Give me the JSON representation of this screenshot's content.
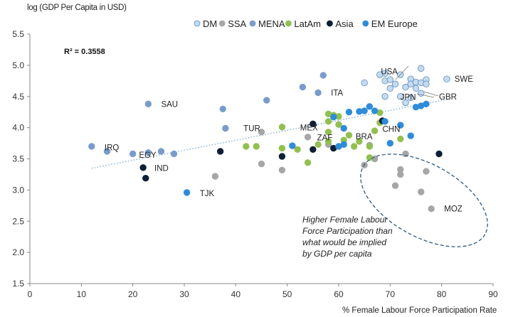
{
  "chart_data": {
    "type": "scatter",
    "ylabel": "log (GDP Per Capita in USD)",
    "xlabel": "% Female Labour Force Participation Rate",
    "xlim": [
      0,
      90
    ],
    "ylim": [
      1.5,
      5.5
    ],
    "xticks": [
      "0",
      "10",
      "20",
      "30",
      "40",
      "50",
      "60",
      "70",
      "80",
      "90"
    ],
    "yticks": [
      "1.5",
      "2.0",
      "2.5",
      "3.0",
      "3.5",
      "4.0",
      "4.5",
      "5.0",
      "5.5"
    ],
    "r_squared": "R² = 0.3558",
    "trendline": {
      "x_start": 12,
      "y_start": 3.35,
      "x_end": 82,
      "y_end": 4.47,
      "color": "#8fb9da"
    },
    "annotation": {
      "lines": [
        "Higher Female Labour",
        "Force Participation than",
        "what would be implied",
        "by GDP per capita"
      ],
      "ellipse_color": "#2e5a87"
    },
    "series": [
      {
        "name": "DM",
        "color": "#c5dbed",
        "stroke": "#5b8bbd",
        "points": [
          [
            65,
            4.72
          ],
          [
            68,
            4.85
          ],
          [
            69,
            4.87
          ],
          [
            69,
            4.75
          ],
          [
            70,
            4.63
          ],
          [
            70,
            4.77
          ],
          [
            71,
            4.7
          ],
          [
            72,
            4.85
          ],
          [
            73,
            4.65
          ],
          [
            74,
            4.78
          ],
          [
            74,
            4.7
          ],
          [
            75,
            4.73
          ],
          [
            75,
            4.63
          ],
          [
            76,
            4.72
          ],
          [
            76,
            4.95
          ],
          [
            77,
            4.77
          ],
          [
            77,
            4.7
          ],
          [
            72,
            4.5
          ],
          [
            73,
            4.4
          ],
          [
            74,
            4.48
          ],
          [
            76,
            4.55
          ],
          [
            81,
            4.78
          ],
          [
            69,
            4.5
          ]
        ]
      },
      {
        "name": "SSA",
        "color": "#a6a6a6",
        "stroke": "#a6a6a6",
        "points": [
          [
            36,
            3.22
          ],
          [
            45,
            3.42
          ],
          [
            49,
            3.32
          ],
          [
            54,
            3.85
          ],
          [
            58,
            3.73
          ],
          [
            65,
            3.4
          ],
          [
            66,
            3.72
          ],
          [
            71,
            3.07
          ],
          [
            72,
            3.25
          ],
          [
            72,
            3.33
          ],
          [
            73,
            3.58
          ],
          [
            76,
            2.97
          ],
          [
            77,
            3.3
          ],
          [
            78,
            2.7
          ],
          [
            45,
            3.93
          ],
          [
            67,
            3.5
          ]
        ]
      },
      {
        "name": "MENA",
        "color": "#7a9ccc",
        "stroke": "#7a9ccc",
        "points": [
          [
            12,
            3.7
          ],
          [
            15,
            3.62
          ],
          [
            20,
            3.58
          ],
          [
            23,
            3.6
          ],
          [
            25.5,
            3.62
          ],
          [
            28,
            3.58
          ],
          [
            23,
            4.38
          ],
          [
            37.5,
            4.3
          ],
          [
            38,
            3.99
          ],
          [
            46,
            4.44
          ],
          [
            53,
            4.65
          ],
          [
            57,
            4.84
          ],
          [
            56,
            4.56
          ]
        ]
      },
      {
        "name": "LatAm",
        "color": "#92c050",
        "stroke": "#92c050",
        "points": [
          [
            42,
            3.7
          ],
          [
            44,
            3.7
          ],
          [
            49,
            4.01
          ],
          [
            49,
            3.67
          ],
          [
            52,
            3.65
          ],
          [
            54,
            3.44
          ],
          [
            56,
            3.73
          ],
          [
            58,
            3.78
          ],
          [
            58,
            3.93
          ],
          [
            58,
            4.1
          ],
          [
            59,
            4.2
          ],
          [
            60,
            4.05
          ],
          [
            60,
            4.18
          ],
          [
            60,
            3.7
          ],
          [
            61,
            3.8
          ],
          [
            62,
            3.88
          ],
          [
            63,
            3.7
          ],
          [
            64,
            3.78
          ],
          [
            66,
            3.7
          ],
          [
            66,
            3.52
          ],
          [
            67,
            3.95
          ],
          [
            68,
            4.24
          ],
          [
            68,
            4.08
          ],
          [
            72,
            3.82
          ],
          [
            58,
            4.22
          ]
        ]
      },
      {
        "name": "Asia",
        "color": "#0d1f33",
        "stroke": "#0d1f33",
        "points": [
          [
            22,
            3.36
          ],
          [
            22.5,
            3.19
          ],
          [
            37,
            3.62
          ],
          [
            49,
            3.54
          ],
          [
            55,
            4.06
          ],
          [
            55,
            3.65
          ],
          [
            59,
            3.67
          ],
          [
            68.5,
            4.11
          ],
          [
            79.5,
            3.58
          ]
        ]
      },
      {
        "name": "EM Europe",
        "color": "#2e8cd9",
        "stroke": "#2e8cd9",
        "points": [
          [
            30.5,
            2.96
          ],
          [
            51,
            3.71
          ],
          [
            59,
            4.17
          ],
          [
            61,
            3.99
          ],
          [
            61,
            3.73
          ],
          [
            62,
            4.25
          ],
          [
            64,
            4.26
          ],
          [
            65,
            4.27
          ],
          [
            66,
            4.34
          ],
          [
            67,
            4.27
          ],
          [
            69,
            4.1
          ],
          [
            70,
            3.75
          ],
          [
            72,
            4.04
          ],
          [
            75,
            4.33
          ],
          [
            76,
            4.35
          ],
          [
            77,
            4.38
          ],
          [
            74,
            3.87
          ],
          [
            60,
            3.7
          ]
        ]
      }
    ],
    "labels": [
      {
        "text": "USA",
        "x": 68.2,
        "y": 4.9
      },
      {
        "text": "SWE",
        "x": 82.5,
        "y": 4.78
      },
      {
        "text": "ITA",
        "x": 58.5,
        "y": 4.56
      },
      {
        "text": "JPN",
        "x": 72,
        "y": 4.49
      },
      {
        "text": "GBR",
        "x": 79.5,
        "y": 4.5
      },
      {
        "text": "SAU",
        "x": 25.5,
        "y": 4.38
      },
      {
        "text": "TUR",
        "x": 41.5,
        "y": 3.99
      },
      {
        "text": "MEX",
        "x": 52.5,
        "y": 4.0
      },
      {
        "text": "CHN",
        "x": 68.5,
        "y": 3.98
      },
      {
        "text": "ZAF",
        "x": 55.8,
        "y": 3.84
      },
      {
        "text": "BRA",
        "x": 63.3,
        "y": 3.86
      },
      {
        "text": "IRQ",
        "x": 14.5,
        "y": 3.68
      },
      {
        "text": "EGY",
        "x": 21.2,
        "y": 3.56
      },
      {
        "text": "IND",
        "x": 24.2,
        "y": 3.35
      },
      {
        "text": "TJK",
        "x": 33,
        "y": 2.95
      },
      {
        "text": "MOZ",
        "x": 80.5,
        "y": 2.7
      }
    ]
  }
}
